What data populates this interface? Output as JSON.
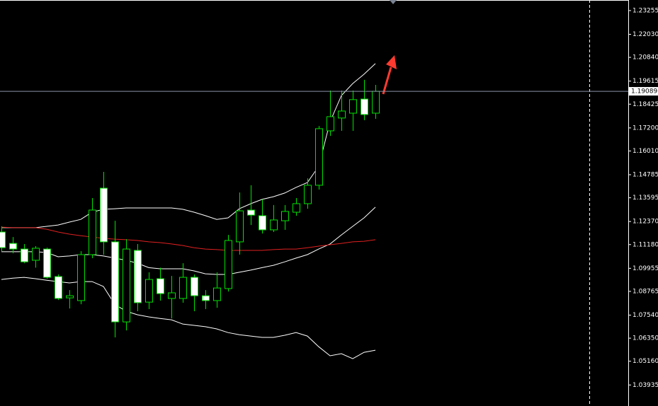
{
  "chart_data": {
    "type": "candlestick",
    "open": [
      1.1183,
      1.1124,
      1.1095,
      1.1037,
      1.1095,
      1.0953,
      1.0843,
      1.0829,
      1.1066,
      1.1409,
      1.1132,
      1.0719,
      1.1088,
      1.0821,
      1.0942,
      1.084,
      1.084,
      1.0949,
      1.0854,
      1.0829,
      1.0891,
      1.1132,
      1.1296,
      1.1267,
      1.1194,
      1.1241,
      1.1285,
      1.1329,
      1.1424,
      1.1705,
      1.1771,
      1.1796,
      1.1869,
      1.1796
    ],
    "high": [
      1.1212,
      1.1157,
      1.1121,
      1.111,
      1.1102,
      1.0964,
      1.0883,
      1.1084,
      1.1358,
      1.1493,
      1.1241,
      1.1146,
      1.1121,
      1.0975,
      1.0999,
      1.0956,
      1.1022,
      1.0964,
      1.0883,
      1.0975,
      1.1168,
      1.1387,
      1.1424,
      1.1351,
      1.1322,
      1.1322,
      1.1358,
      1.146,
      1.173,
      1.1913,
      1.1913,
      1.1913,
      1.1968,
      1.1942
    ],
    "low": [
      1.1084,
      1.1073,
      1.1022,
      1.0999,
      1.0942,
      1.0832,
      1.0788,
      1.081,
      1.1048,
      1.1066,
      1.0639,
      1.0675,
      1.0774,
      1.0785,
      1.0829,
      1.0737,
      1.0818,
      1.0774,
      1.0785,
      1.0792,
      1.0876,
      1.1066,
      1.1219,
      1.1175,
      1.1183,
      1.1194,
      1.1267,
      1.1303,
      1.1402,
      1.1679,
      1.1705,
      1.1705,
      1.176,
      1.1767
    ],
    "close": [
      1.1102,
      1.1095,
      1.1029,
      1.1099,
      1.0949,
      1.084,
      1.0854,
      1.1066,
      1.1296,
      1.1132,
      1.0719,
      1.1095,
      1.0818,
      1.0938,
      1.0865,
      1.0869,
      1.0949,
      1.0854,
      1.0829,
      1.0894,
      1.1139,
      1.1292,
      1.127,
      1.1194,
      1.1245,
      1.1289,
      1.1329,
      1.1424,
      1.1716,
      1.1778,
      1.1807,
      1.1866,
      1.1789,
      1.1909
    ],
    "indicators": [
      {
        "color": "#ffffff",
        "values": [
          1.1205,
          1.1205,
          1.1205,
          1.1205,
          1.1212,
          1.1219,
          1.1234,
          1.1248,
          1.1285,
          1.13,
          1.1303,
          1.1307,
          1.1307,
          1.1307,
          1.1307,
          1.1307,
          1.13,
          1.1285,
          1.1267,
          1.1248,
          1.1256,
          1.1303,
          1.1329,
          1.1351,
          1.1365,
          1.1384,
          1.1413,
          1.1438,
          1.1522,
          1.1752,
          1.1887,
          1.1949,
          1.1997,
          1.2052
        ]
      },
      {
        "color": "#ffffff",
        "values": [
          1.1081,
          1.1081,
          1.1081,
          1.1081,
          1.1077,
          1.1055,
          1.1059,
          1.1066,
          1.1066,
          1.1059,
          1.1048,
          1.1037,
          1.1022,
          1.0999,
          1.0993,
          1.0993,
          1.0993,
          1.0982,
          1.0967,
          1.0964,
          1.0964,
          1.0975,
          1.0986,
          1.0999,
          1.1011,
          1.1029,
          1.1048,
          1.1066,
          1.1095,
          1.1121,
          1.1168,
          1.1212,
          1.1256,
          1.1311
        ]
      },
      {
        "color": "#ffffff",
        "values": [
          1.0938,
          1.0945,
          1.0949,
          1.0942,
          1.0934,
          1.0927,
          1.092,
          1.0927,
          1.0927,
          1.0902,
          1.081,
          1.0774,
          1.0756,
          1.0745,
          1.0737,
          1.073,
          1.0708,
          1.0701,
          1.0694,
          1.0683,
          1.0664,
          1.0653,
          1.0646,
          1.0639,
          1.0639,
          1.065,
          1.0664,
          1.0646,
          1.0591,
          1.0544,
          1.0555,
          1.0529,
          1.0562,
          1.0573
        ]
      },
      {
        "color": "#e02020",
        "values": [
          1.1208,
          1.1205,
          1.1205,
          1.1205,
          1.1197,
          1.1183,
          1.1172,
          1.1164,
          1.1157,
          1.115,
          1.1146,
          1.1143,
          1.1139,
          1.1132,
          1.1128,
          1.1121,
          1.1113,
          1.1102,
          1.1095,
          1.1092,
          1.1088,
          1.1088,
          1.1088,
          1.1088,
          1.1092,
          1.1095,
          1.1095,
          1.1102,
          1.111,
          1.1117,
          1.1124,
          1.1132,
          1.1135,
          1.1143
        ]
      }
    ],
    "up_color": "#000000",
    "down_color": "#ffffff",
    "wick_color": "#00e000",
    "current_price": 1.19089,
    "price_line_color": "#8a93a8",
    "ylim": [
      1.0285,
      1.238
    ],
    "yticks": [
      1.23255,
      {
        "value": 1.2203,
        "label": "1.22030"
      },
      {
        "value": 1.2084,
        "label": "1.20840"
      },
      1.19615,
      1.18425,
      {
        "value": 1.172,
        "label": "1.17200"
      },
      {
        "value": 1.1601,
        "label": "1.16010"
      },
      1.14785,
      1.13595,
      {
        "value": 1.1237,
        "label": "1.12370"
      },
      {
        "value": 1.1118,
        "label": "1.11180"
      },
      1.09955,
      1.08765,
      {
        "value": 1.0754,
        "label": "1.07540"
      },
      {
        "value": 1.0635,
        "label": "1.06350"
      },
      {
        "value": 1.0516,
        "label": "1.05160"
      },
      1.03935
    ]
  }
}
